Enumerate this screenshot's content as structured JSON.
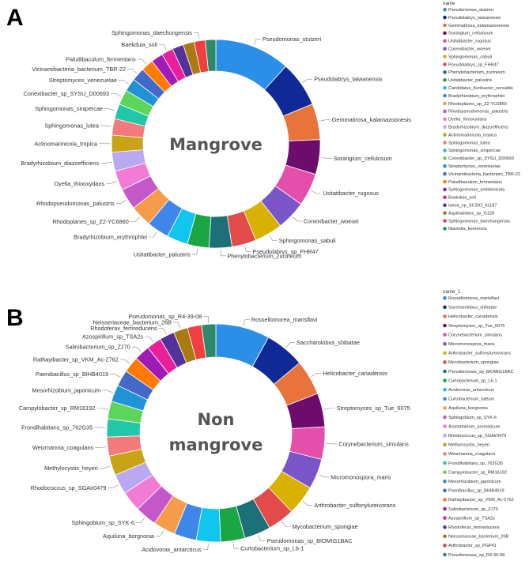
{
  "chart_data": [
    {
      "type": "donut",
      "panel": "A",
      "center_title": [
        "Mangrove"
      ],
      "legend_title": "name",
      "legend_entries": [
        {
          "name": "Pseudomonas_stutzeri",
          "color": "#2b8fe8"
        },
        {
          "name": "Pseudolabrys_taiwanensis",
          "color": "#0f2a96"
        },
        {
          "name": "Gemmatirosa_kalamazoonesis",
          "color": "#e8743b"
        },
        {
          "name": "Sorangium_cellulosum",
          "color": "#6e0c6e"
        },
        {
          "name": "Usitatibacter_rugosus",
          "color": "#e44fac"
        },
        {
          "name": "Conexibacter_woesei",
          "color": "#7a55c8"
        },
        {
          "name": "Sphingomonas_sabuli",
          "color": "#d9b100"
        },
        {
          "name": "Pseudolabrys_sp_FHR47",
          "color": "#e34a4a"
        },
        {
          "name": "Phenylobacterium_zucineum",
          "color": "#1d6f78"
        },
        {
          "name": "Usitatibacter_palustris",
          "color": "#1aa642"
        },
        {
          "name": "Candidatus_Koribacter_versatilis",
          "color": "#11c6ee"
        },
        {
          "name": "Bradyrhizobium_erythrophlei",
          "color": "#3f86ea"
        },
        {
          "name": "Rhodoplanes_sp_Z2-YC6860",
          "color": "#f59b4a"
        },
        {
          "name": "Rhodopseudomonas_palustris",
          "color": "#c558c9"
        },
        {
          "name": "Dyella_thiooxydans",
          "color": "#f27bd6"
        },
        {
          "name": "Bradyrhizobium_diazoefficiens",
          "color": "#b8a9f0"
        },
        {
          "name": "Actinomarinicola_tropica",
          "color": "#c9a316"
        },
        {
          "name": "Sphingomonas_lutea",
          "color": "#f27a7a"
        },
        {
          "name": "Sphingomonas_sinipercae",
          "color": "#22c7a8"
        },
        {
          "name": "Conexibacter_sp_SYSU_D00693",
          "color": "#5dd45a"
        },
        {
          "name": "Streptomyces_venezuelae",
          "color": "#1f93d6"
        },
        {
          "name": "Vicinamibacteria_bacterium_TBR-22",
          "color": "#4269c9"
        },
        {
          "name": "Paludibaculum_fermentans",
          "color": "#ff7a00"
        },
        {
          "name": "Sphingomonas_sediminicola",
          "color": "#a01bb5"
        },
        {
          "name": "Baekduia_soli",
          "color": "#e8209a"
        },
        {
          "name": "Iamia_sp_SCSIO_61187",
          "color": "#54329c"
        },
        {
          "name": "Aquihabitans_sp_G128",
          "color": "#a87a10"
        },
        {
          "name": "Sphingomonas_daechungensis",
          "color": "#f13e3e"
        },
        {
          "name": "Niastella_koreensis",
          "color": "#2a8a6a"
        }
      ],
      "slices": [
        {
          "name": "Pseudomonas_stutzeri",
          "value": 11.5,
          "label": "Pseudomonas_stutzeri"
        },
        {
          "name": "Pseudolabrys_taiwanensis",
          "value": 7.0,
          "label": "Pseudolabrys_taiwanensis"
        },
        {
          "name": "Gemmatirosa_kalamazoonesis",
          "value": 5.5,
          "label": "Gemmatirosa_kalamazoonesis"
        },
        {
          "name": "Sorangium_cellulosum",
          "value": 5.3,
          "label": "Sorangium_cellulosum"
        },
        {
          "name": "Usitatibacter_rugosus",
          "value": 5.0,
          "label": "Usitatibacter_rugosus"
        },
        {
          "name": "Conexibacter_woesei",
          "value": 4.5,
          "label": "Conexibacter_woesei"
        },
        {
          "name": "Sphingomonas_sabuli",
          "value": 4.3,
          "label": "Sphingomonas_sabuli"
        },
        {
          "name": "Pseudolabrys_sp_FHR47",
          "value": 3.7,
          "label": "Pseudolabrys_sp_FHR47"
        },
        {
          "name": "Phenylobacterium_zucineum",
          "value": 3.5,
          "label": "Phenylobacterium_zucineum"
        },
        {
          "name": "Usitatibacter_palustris",
          "value": 3.3,
          "label": "Usitatibacter_palustris"
        },
        {
          "name": "Candidatus_Koribacter_versatilis",
          "value": 3.2,
          "label": ""
        },
        {
          "name": "Bradyrhizobium_erythrophlei",
          "value": 3.4,
          "label": "Bradyrhizobium_erythrophlei"
        },
        {
          "name": "Rhodoplanes_sp_Z2-YC6860",
          "value": 3.3,
          "label": "Rhodoplanes_sp_Z2-YC6860"
        },
        {
          "name": "Rhodopseudomonas_palustris",
          "value": 3.2,
          "label": "Rhodopseudomonas_palustris"
        },
        {
          "name": "Dyella_thiooxydans",
          "value": 3.0,
          "label": "Dyella_thiooxydans"
        },
        {
          "name": "Bradyrhizobium_diazoefficiens",
          "value": 2.9,
          "label": "Bradyrhizobium_diazoefficiens"
        },
        {
          "name": "Actinomarinicola_tropica",
          "value": 2.6,
          "label": "Actinomarinicola_tropica"
        },
        {
          "name": "Sphingomonas_lutea",
          "value": 2.5,
          "label": "Sphingomonas_lutea"
        },
        {
          "name": "Sphingomonas_sinipercae",
          "value": 2.3,
          "label": "Sphingomonas_sinipercae"
        },
        {
          "name": "Conexibacter_sp_SYSU_D00693",
          "value": 2.3,
          "label": "Conexibacter_sp_SYSU_D00693"
        },
        {
          "name": "Streptomyces_venezuelae",
          "value": 2.0,
          "label": "Streptomyces_venezuelae"
        },
        {
          "name": "Vicinamibacteria_bacterium_TBR-22",
          "value": 2.0,
          "label": "Vicinamibacteria_bacterium_TBR-22"
        },
        {
          "name": "Paludibaculum_fermentans",
          "value": 1.9,
          "label": "Paludibaculum_fermentans"
        },
        {
          "name": "Sphingomonas_sediminicola",
          "value": 1.8,
          "label": ""
        },
        {
          "name": "Baekduia_soli",
          "value": 1.8,
          "label": "Baekduia_soli"
        },
        {
          "name": "Iamia_sp_SCSIO_61187",
          "value": 1.7,
          "label": ""
        },
        {
          "name": "Aquihabitans_sp_G128",
          "value": 1.7,
          "label": ""
        },
        {
          "name": "Sphingomonas_daechungensis",
          "value": 1.7,
          "label": "Sphingomonas_daechungensis"
        },
        {
          "name": "Niastella_koreensis",
          "value": 1.6,
          "label": ""
        }
      ]
    },
    {
      "type": "donut",
      "panel": "B",
      "center_title": [
        "Non",
        "mangrove"
      ],
      "legend_title": "name_1",
      "legend_entries": [
        {
          "name": "Rossellomorea_marisflavi",
          "color": "#2b8fe8"
        },
        {
          "name": "Saccharolobus_shibatae",
          "color": "#0f2a96"
        },
        {
          "name": "Helicobacter_canadensis",
          "color": "#e8743b"
        },
        {
          "name": "Streptomyces_sp_Tue_6075",
          "color": "#6e0c6e"
        },
        {
          "name": "Corynebacterium_simulans",
          "color": "#e44fac"
        },
        {
          "name": "Micromonospora_maris",
          "color": "#7a55c8"
        },
        {
          "name": "Arthrobacter_sulfonylureivorans",
          "color": "#d9b100"
        },
        {
          "name": "Mycobacterium_spongiae",
          "color": "#e34a4a"
        },
        {
          "name": "Pseudomonas_sp_BIOMIG1BAC",
          "color": "#1d6f78"
        },
        {
          "name": "Curtobacterium_sp_L6-1",
          "color": "#1aa642"
        },
        {
          "name": "Acidovorax_antarcticus",
          "color": "#11c6ee"
        },
        {
          "name": "Curtobacterium_luteum",
          "color": "#3f86ea"
        },
        {
          "name": "Aquiluna_borgnonia",
          "color": "#f59b4a"
        },
        {
          "name": "Sphingobium_sp_SYK-6",
          "color": "#c558c9"
        },
        {
          "name": "Aromatoleum_aromaticum",
          "color": "#f27bd6"
        },
        {
          "name": "Rhodococcus_sp_SGAir0479",
          "color": "#b8a9f0"
        },
        {
          "name": "Methylocystis_heyeri",
          "color": "#c9a316"
        },
        {
          "name": "Weizmannia_coagulans",
          "color": "#f27a7a"
        },
        {
          "name": "Frondihabitans_sp_762G35",
          "color": "#22c7a8"
        },
        {
          "name": "Campylobacter_sp_RM16192",
          "color": "#5dd45a"
        },
        {
          "name": "Mesorhizobium_japonicum",
          "color": "#1f93d6"
        },
        {
          "name": "Paenibacillus_sp_BIHB4019",
          "color": "#4269c9"
        },
        {
          "name": "Rathayibacter_sp_VKM_Ac-2762",
          "color": "#ff7a00"
        },
        {
          "name": "Salinibacterium_sp_ZJ70",
          "color": "#a01bb5"
        },
        {
          "name": "Azospirillum_sp_TSA2s",
          "color": "#e8209a"
        },
        {
          "name": "Rhodoferax_ferrireducens",
          "color": "#54329c"
        },
        {
          "name": "Neisseriaceae_bacterium_26B",
          "color": "#a87a10"
        },
        {
          "name": "Arthrobacter_sp_PGP41",
          "color": "#f13e3e"
        },
        {
          "name": "Pseudomonas_sp_R4-39-08",
          "color": "#2a8a6a"
        }
      ],
      "slices": [
        {
          "name": "Rossellomorea_marisflavi",
          "value": 8.0,
          "label": "Rossellomorea_marisflavi"
        },
        {
          "name": "Saccharolobus_shibatae",
          "value": 5.9,
          "label": "Saccharolobus_shibatae"
        },
        {
          "name": "Helicobacter_canadensis",
          "value": 5.2,
          "label": "Helicobacter_canadensis"
        },
        {
          "name": "Streptomyces_sp_Tue_6075",
          "value": 5.0,
          "label": "Streptomyces_sp_Tue_6075"
        },
        {
          "name": "Corynebacterium_simulans",
          "value": 4.8,
          "label": "Corynebacterium_simulans"
        },
        {
          "name": "Micromonospora_maris",
          "value": 4.5,
          "label": "Micromonospora_maris"
        },
        {
          "name": "Arthrobacter_sulfonylureivorans",
          "value": 4.4,
          "label": "Arthrobacter_sulfonylureivorans"
        },
        {
          "name": "Mycobacterium_spongiae",
          "value": 4.0,
          "label": "Mycobacterium_spongiae"
        },
        {
          "name": "Pseudomonas_sp_BIOMIG1BAC",
          "value": 3.9,
          "label": "Pseudomonas_sp_BIOMIG1BAC"
        },
        {
          "name": "Curtobacterium_sp_L6-1",
          "value": 3.6,
          "label": "Curtobacterium_sp_L6-1"
        },
        {
          "name": "Acidovorax_antarcticus",
          "value": 3.6,
          "label": "Acidovorax_antarcticus"
        },
        {
          "name": "Curtobacterium_luteum",
          "value": 3.3,
          "label": ""
        },
        {
          "name": "Aquiluna_borgnonia",
          "value": 3.3,
          "label": "Aquiluna_borgnonia"
        },
        {
          "name": "Sphingobium_sp_SYK-6",
          "value": 3.2,
          "label": "Sphingobium_sp_SYK-6"
        },
        {
          "name": "Aromatoleum_aromaticum",
          "value": 3.0,
          "label": ""
        },
        {
          "name": "Rhodococcus_sp_SGAir0479",
          "value": 3.0,
          "label": "Rhodococcus_sp_SGAir0479"
        },
        {
          "name": "Methylocystis_heyeri",
          "value": 2.9,
          "label": "Methylocystis_heyeri"
        },
        {
          "name": "Weizmannia_coagulans",
          "value": 2.8,
          "label": "Weizmannia_coagulans"
        },
        {
          "name": "Frondihabitans_sp_762G35",
          "value": 2.7,
          "label": "Frondihabitans_sp_762G35"
        },
        {
          "name": "Campylobacter_sp_RM16192",
          "value": 2.6,
          "label": "Campylobacter_sp_RM16192"
        },
        {
          "name": "Mesorhizobium_japonicum",
          "value": 2.5,
          "label": "Mesorhizobium_japonicum"
        },
        {
          "name": "Paenibacillus_sp_BIHB4019",
          "value": 2.4,
          "label": "Paenibacillus_sp_BIHB4019"
        },
        {
          "name": "Rathayibacter_sp_VKM_Ac-2762",
          "value": 2.4,
          "label": "Rathayibacter_sp_VKM_Ac-2762"
        },
        {
          "name": "Salinibacterium_sp_ZJ70",
          "value": 2.3,
          "label": "Salinibacterium_sp_ZJ70"
        },
        {
          "name": "Azospirillum_sp_TSA2s",
          "value": 2.2,
          "label": "Azospirillum_sp_TSA2s"
        },
        {
          "name": "Rhodoferax_ferrireducens",
          "value": 2.2,
          "label": "Rhodoferax_ferrireducens"
        },
        {
          "name": "Neisseriaceae_bacterium_26B",
          "value": 2.1,
          "label": "Neisseriaceae_bacterium_26B"
        },
        {
          "name": "Arthrobacter_sp_PGP41",
          "value": 2.1,
          "label": ""
        },
        {
          "name": "Pseudomonas_sp_R4-39-08",
          "value": 2.1,
          "label": "Pseudomonas_sp_R4-39-08"
        }
      ]
    }
  ]
}
